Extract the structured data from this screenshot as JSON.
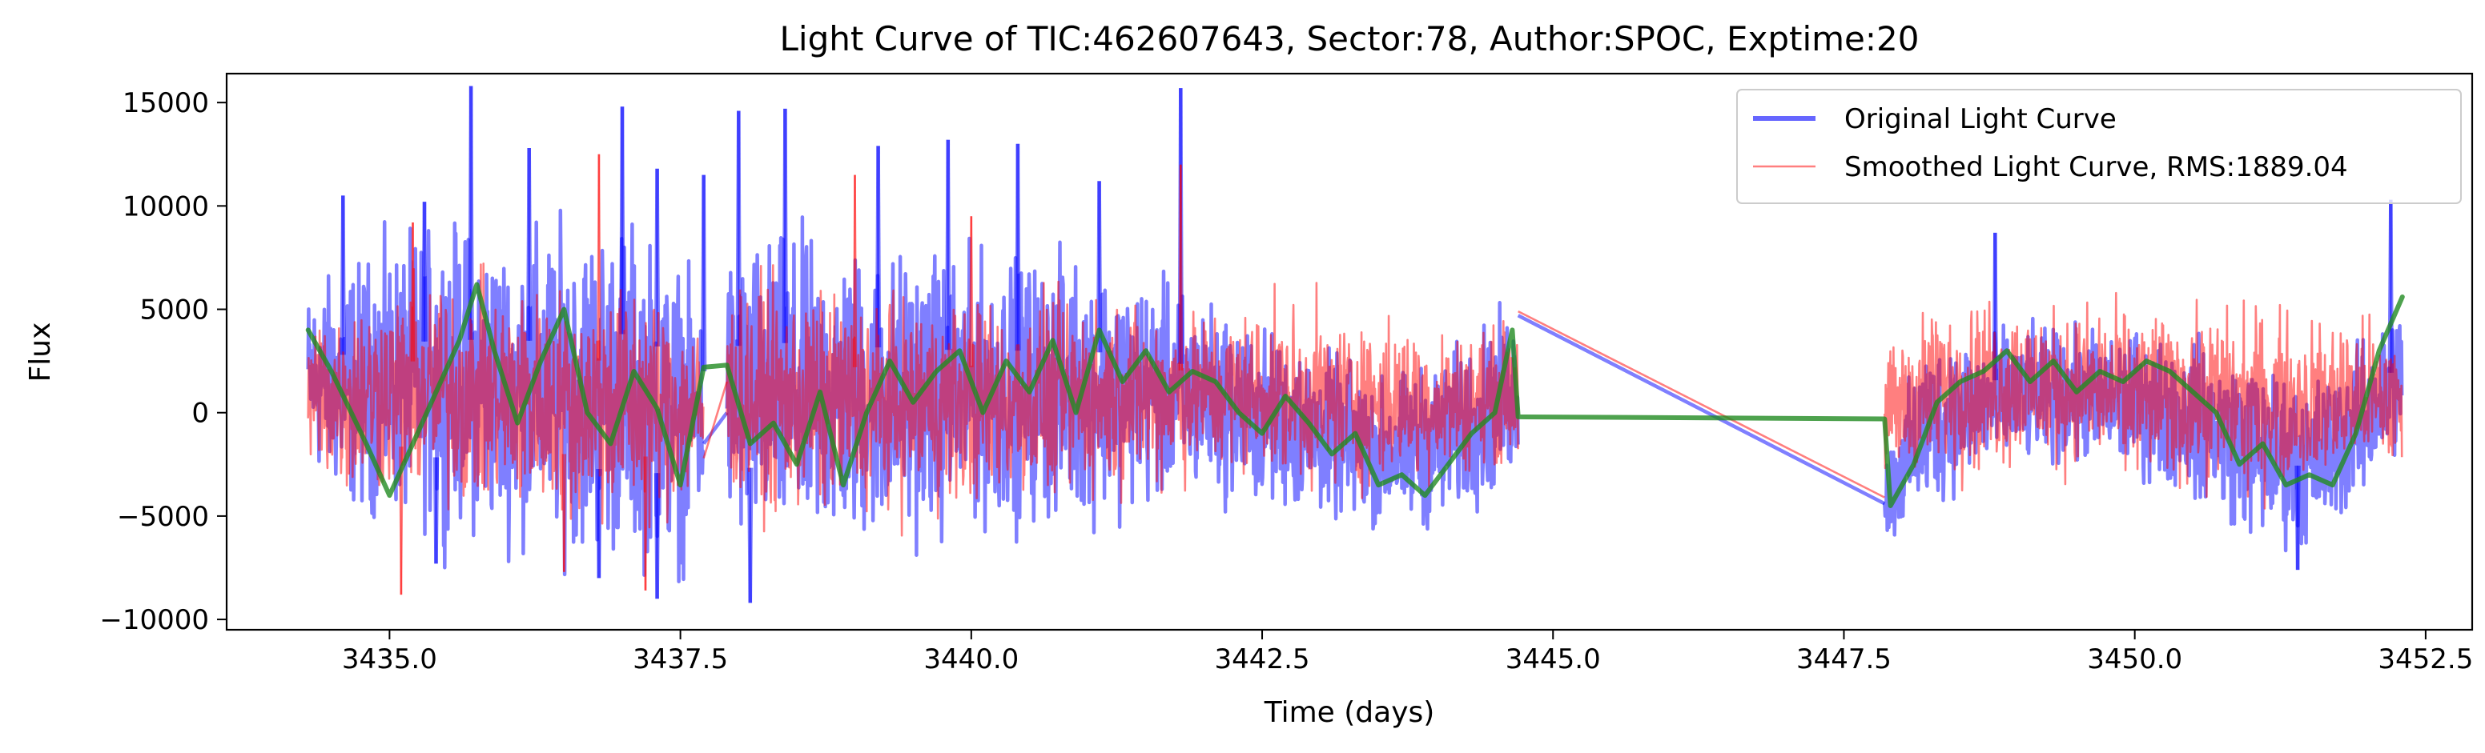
{
  "chart_data": {
    "type": "line",
    "title": "Light Curve of TIC:462607643, Sector:78, Author:SPOC, Exptime:20",
    "xlabel": "Time (days)",
    "ylabel": "Flux",
    "xlim": [
      3433.6,
      3452.9
    ],
    "ylim": [
      -10500,
      16400
    ],
    "xticks": [
      3435.0,
      3437.5,
      3440.0,
      3442.5,
      3445.0,
      3447.5,
      3450.0,
      3452.5
    ],
    "xtick_labels": [
      "3435.0",
      "3437.5",
      "3440.0",
      "3442.5",
      "3445.0",
      "3447.5",
      "3450.0",
      "3452.5"
    ],
    "yticks": [
      -10000,
      -5000,
      0,
      5000,
      10000,
      15000
    ],
    "ytick_labels": [
      "−10000",
      "−5000",
      "0",
      "5000",
      "10000",
      "15000"
    ],
    "grid": false,
    "legend_position": "top-right",
    "segments": [
      {
        "start": 3434.3,
        "end": 3437.7
      },
      {
        "start": 3437.9,
        "end": 3444.7
      },
      {
        "start": 3447.85,
        "end": 3452.3
      }
    ],
    "series": [
      {
        "name": "Original Light Curve",
        "color": "#0000ff",
        "opacity": 0.5,
        "envelope": {
          "x": [
            3434.3,
            3434.6,
            3435.0,
            3435.5,
            3436.0,
            3436.5,
            3437.0,
            3437.5,
            3437.7,
            3437.9,
            3438.5,
            3439.0,
            3440.0,
            3441.0,
            3442.0,
            3442.5,
            3443.0,
            3443.5,
            3444.0,
            3444.5,
            3444.7,
            3447.85,
            3448.2,
            3448.5,
            3449.0,
            3449.5,
            3450.0,
            3450.5,
            3451.0,
            3451.5,
            3452.0,
            3452.3
          ],
          "hi": [
            6000,
            7000,
            8000,
            9000,
            8500,
            9000,
            9500,
            7000,
            5000,
            8000,
            8500,
            8000,
            7500,
            7500,
            5500,
            4000,
            3000,
            1500,
            2500,
            4500,
            5500,
            -2000,
            3500,
            3800,
            4000,
            4000,
            3800,
            3500,
            2500,
            1500,
            3500,
            5500
          ],
          "lo": [
            -2500,
            -4500,
            -5000,
            -5500,
            -6000,
            -6500,
            -7000,
            -7500,
            -5000,
            -6500,
            -7000,
            -6500,
            -5500,
            -5000,
            -4000,
            -4500,
            -5000,
            -5500,
            -5500,
            -4000,
            -3000,
            -6500,
            -5000,
            -3500,
            -2500,
            -2500,
            -3000,
            -4000,
            -6000,
            -6500,
            -4000,
            -1500
          ]
        },
        "spikes": [
          {
            "x": 3434.6,
            "y": 10500
          },
          {
            "x": 3435.3,
            "y": 10200
          },
          {
            "x": 3435.7,
            "y": 15800
          },
          {
            "x": 3436.2,
            "y": 12800
          },
          {
            "x": 3437.0,
            "y": 14800
          },
          {
            "x": 3437.3,
            "y": 11800
          },
          {
            "x": 3437.7,
            "y": 11500
          },
          {
            "x": 3438.0,
            "y": 14600
          },
          {
            "x": 3438.4,
            "y": 14700
          },
          {
            "x": 3439.2,
            "y": 12900
          },
          {
            "x": 3439.8,
            "y": 13200
          },
          {
            "x": 3440.4,
            "y": 13000
          },
          {
            "x": 3441.1,
            "y": 11200
          },
          {
            "x": 3441.8,
            "y": 15700
          },
          {
            "x": 3448.8,
            "y": 8700
          },
          {
            "x": 3452.2,
            "y": 10300
          },
          {
            "x": 3437.3,
            "y": -9000
          },
          {
            "x": 3438.1,
            "y": -9200
          },
          {
            "x": 3435.4,
            "y": -7300
          },
          {
            "x": 3451.4,
            "y": -7600
          },
          {
            "x": 3436.8,
            "y": -8000
          }
        ],
        "connectors": [
          {
            "x": [
              3437.7,
              3437.9
            ],
            "y": [
              -1500,
              0
            ]
          },
          {
            "x": [
              3444.7,
              3447.85
            ],
            "y": [
              4700,
              -4400
            ]
          }
        ]
      },
      {
        "name": "Smoothed Light Curve, RMS:1889.04",
        "color": "#ff0000",
        "opacity": 0.5,
        "envelope": {
          "x": [
            3434.3,
            3434.6,
            3435.0,
            3435.5,
            3436.0,
            3436.5,
            3437.0,
            3437.5,
            3437.7,
            3437.9,
            3438.5,
            3439.0,
            3440.0,
            3441.0,
            3442.0,
            3442.5,
            3443.0,
            3443.5,
            3444.0,
            3444.5,
            3444.7,
            3447.85,
            3448.2,
            3448.5,
            3449.0,
            3449.5,
            3450.0,
            3450.5,
            3451.0,
            3451.5,
            3452.0,
            3452.3
          ],
          "hi": [
            5000,
            5500,
            6000,
            6500,
            6000,
            6000,
            6500,
            5500,
            4000,
            6000,
            6000,
            5500,
            5500,
            5500,
            5000,
            5000,
            5000,
            4500,
            4000,
            4000,
            4800,
            3000,
            5000,
            5500,
            5500,
            5000,
            5000,
            5000,
            5000,
            4500,
            4500,
            3500
          ],
          "lo": [
            -3000,
            -4000,
            -4000,
            -4500,
            -5000,
            -5000,
            -5500,
            -5000,
            -4000,
            -4500,
            -5000,
            -4800,
            -4500,
            -4000,
            -3000,
            -3000,
            -3500,
            -3500,
            -3000,
            -2500,
            -2000,
            -3500,
            -3000,
            -3000,
            -2800,
            -2500,
            -3000,
            -3500,
            -3800,
            -3500,
            -3000,
            -3000
          ]
        },
        "spikes": [
          {
            "x": 3435.2,
            "y": 9200
          },
          {
            "x": 3436.8,
            "y": 12500
          },
          {
            "x": 3439.0,
            "y": 11500
          },
          {
            "x": 3440.0,
            "y": 9500
          },
          {
            "x": 3441.8,
            "y": 12000
          },
          {
            "x": 3435.1,
            "y": -8800
          },
          {
            "x": 3437.2,
            "y": -8600
          },
          {
            "x": 3436.5,
            "y": -7700
          }
        ],
        "connectors": [
          {
            "x": [
              3437.7,
              3437.9
            ],
            "y": [
              -2200,
              1500
            ]
          },
          {
            "x": [
              3444.7,
              3447.85
            ],
            "y": [
              4900,
              -4100
            ]
          }
        ]
      },
      {
        "name": "",
        "color": "#228b22",
        "opacity": 0.8,
        "trend": {
          "x": [
            3434.3,
            3434.5,
            3434.8,
            3435.0,
            3435.2,
            3435.4,
            3435.6,
            3435.75,
            3435.9,
            3436.1,
            3436.3,
            3436.5,
            3436.7,
            3436.9,
            3437.1,
            3437.3,
            3437.5,
            3437.7,
            3437.9,
            3438.1,
            3438.3,
            3438.5,
            3438.7,
            3438.9,
            3439.1,
            3439.3,
            3439.5,
            3439.7,
            3439.9,
            3440.1,
            3440.3,
            3440.5,
            3440.7,
            3440.9,
            3441.1,
            3441.3,
            3441.5,
            3441.7,
            3441.9,
            3442.1,
            3442.3,
            3442.5,
            3442.7,
            3442.9,
            3443.1,
            3443.3,
            3443.5,
            3443.7,
            3443.9,
            3444.1,
            3444.3,
            3444.5,
            3444.65,
            3444.7,
            3447.85,
            3447.9,
            3448.1,
            3448.3,
            3448.5,
            3448.7,
            3448.9,
            3449.1,
            3449.3,
            3449.5,
            3449.7,
            3449.9,
            3450.1,
            3450.3,
            3450.5,
            3450.7,
            3450.9,
            3451.1,
            3451.3,
            3451.5,
            3451.7,
            3451.9,
            3452.1,
            3452.3
          ],
          "y": [
            4000,
            2000,
            -1500,
            -4000,
            -1500,
            1000,
            3500,
            6200,
            3000,
            -500,
            2500,
            5000,
            0,
            -1500,
            2000,
            200,
            -3500,
            2200,
            2300,
            -1500,
            -500,
            -2500,
            1000,
            -3500,
            0,
            2500,
            500,
            2000,
            3000,
            0,
            2500,
            1000,
            3500,
            0,
            4000,
            1500,
            3000,
            1000,
            2000,
            1500,
            0,
            -1000,
            800,
            -500,
            -2000,
            -1000,
            -3500,
            -3000,
            -4000,
            -2500,
            -1000,
            0,
            4000,
            -200,
            -300,
            -4500,
            -2500,
            500,
            1500,
            2000,
            3000,
            1500,
            2500,
            1000,
            2000,
            1500,
            2500,
            2000,
            1000,
            0,
            -2500,
            -1500,
            -3500,
            -3000,
            -3500,
            -1000,
            3000,
            5600
          ]
        }
      }
    ]
  }
}
